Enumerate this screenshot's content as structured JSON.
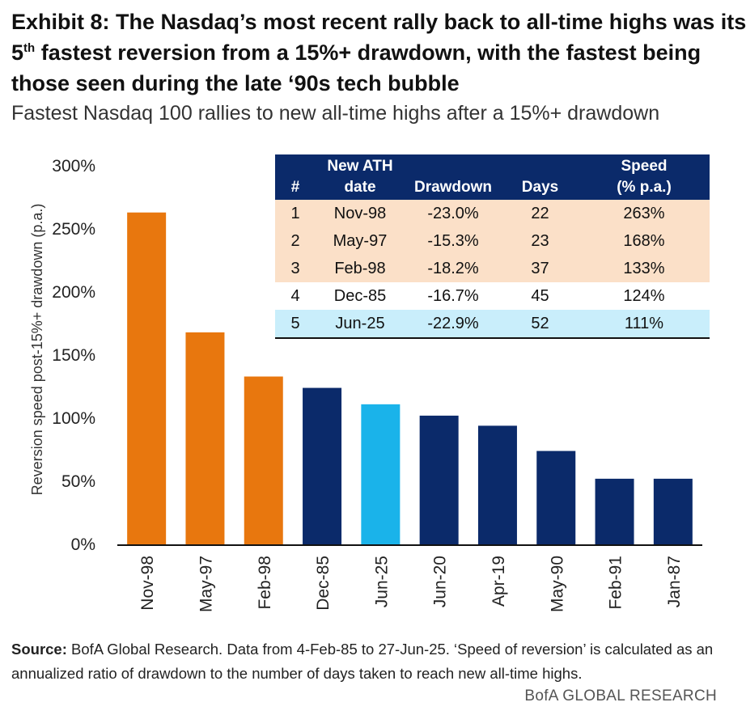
{
  "header": {
    "title_line1": "Exhibit 8: The Nasdaq’s most recent rally back to all-time highs was its",
    "title_line2_num": "5",
    "title_line2_sup": "th",
    "title_line2_rest": " fastest reversion from a 15%+ drawdown, with the fastest being",
    "title_line3": "those seen during the late ‘90s tech bubble",
    "subtitle": "Fastest Nasdaq 100 rallies to new all-time highs after a 15%+ drawdown"
  },
  "chart_data": {
    "type": "bar",
    "title": "Fastest Nasdaq 100 rallies to new all-time highs after a 15%+ drawdown",
    "categories": [
      "Nov-98",
      "May-97",
      "Feb-98",
      "Dec-85",
      "Jun-25",
      "Jun-20",
      "Apr-19",
      "May-90",
      "Feb-91",
      "Jan-87"
    ],
    "values": [
      263,
      168,
      133,
      124,
      111,
      102,
      94,
      74,
      52,
      52
    ],
    "value_unit": "%",
    "bar_colors": [
      "#e8770e",
      "#e8770e",
      "#e8770e",
      "#0b2a6a",
      "#1ab3ea",
      "#0b2a6a",
      "#0b2a6a",
      "#0b2a6a",
      "#0b2a6a",
      "#0b2a6a"
    ],
    "ylabel": "Reversion speed post-15%+ drawdown (p.a.)",
    "xlabel": "",
    "ylim": [
      0,
      300
    ],
    "yticks": [
      0,
      50,
      100,
      150,
      200,
      250,
      300
    ],
    "ytick_labels": [
      "0%",
      "50%",
      "100%",
      "150%",
      "200%",
      "250%",
      "300%"
    ],
    "grid": false
  },
  "table": {
    "headers": {
      "rank": "#",
      "date_line1": "New ATH",
      "date_line2": "date",
      "drawdown": "Drawdown",
      "days": "Days",
      "speed_line1": "Speed",
      "speed_line2": "(% p.a.)"
    },
    "rows": [
      {
        "rank": "1",
        "date": "Nov-98",
        "drawdown": "-23.0%",
        "days": "22",
        "speed": "263%"
      },
      {
        "rank": "2",
        "date": "May-97",
        "drawdown": "-15.3%",
        "days": "23",
        "speed": "168%"
      },
      {
        "rank": "3",
        "date": "Feb-98",
        "drawdown": "-18.2%",
        "days": "37",
        "speed": "133%"
      },
      {
        "rank": "4",
        "date": "Dec-85",
        "drawdown": "-16.7%",
        "days": "45",
        "speed": "124%"
      },
      {
        "rank": "5",
        "date": "Jun-25",
        "drawdown": "-22.9%",
        "days": "52",
        "speed": "111%"
      }
    ]
  },
  "footer": {
    "source_label": "Source:",
    "source_text": " BofA Global Research. Data from 4-Feb-85 to 27-Jun-25. ‘Speed of reversion’ is calculated as an annualized ratio of drawdown to the number of days taken to reach new all-time highs.",
    "credit": "BofA GLOBAL RESEARCH"
  }
}
